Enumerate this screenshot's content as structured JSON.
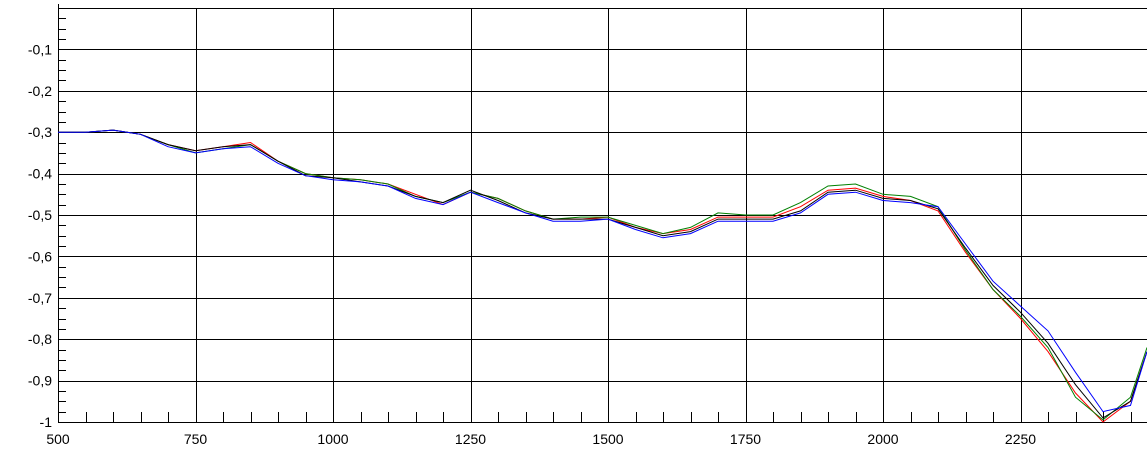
{
  "chart_data": {
    "type": "line",
    "title": "",
    "xlabel": "",
    "ylabel": "",
    "xlim": [
      500,
      2480
    ],
    "ylim": [
      -1.0,
      0.0
    ],
    "grid": true,
    "legend": "none",
    "x_ticks": [
      {
        "value": 500,
        "label": "500"
      },
      {
        "value": 750,
        "label": "750"
      },
      {
        "value": 1000,
        "label": "1000"
      },
      {
        "value": 1250,
        "label": "1250"
      },
      {
        "value": 1500,
        "label": "1500"
      },
      {
        "value": 1750,
        "label": "1750"
      },
      {
        "value": 2000,
        "label": "2000"
      },
      {
        "value": 2250,
        "label": "2250"
      }
    ],
    "y_ticks": [
      {
        "value": -0.1,
        "label": "-0,1"
      },
      {
        "value": -0.2,
        "label": "-0,2"
      },
      {
        "value": -0.3,
        "label": "-0,3"
      },
      {
        "value": -0.4,
        "label": "-0,4"
      },
      {
        "value": -0.5,
        "label": "-0,5"
      },
      {
        "value": -0.6,
        "label": "-0,6"
      },
      {
        "value": -0.7,
        "label": "-0,7"
      },
      {
        "value": -0.8,
        "label": "-0,8"
      },
      {
        "value": -0.9,
        "label": "-0,9"
      },
      {
        "value": -1.0,
        "label": "-1"
      }
    ],
    "x": [
      500,
      550,
      600,
      650,
      700,
      750,
      800,
      850,
      900,
      950,
      1000,
      1050,
      1100,
      1150,
      1200,
      1250,
      1300,
      1350,
      1400,
      1450,
      1500,
      1550,
      1600,
      1650,
      1700,
      1750,
      1800,
      1850,
      1900,
      1950,
      2000,
      2050,
      2100,
      2150,
      2200,
      2250,
      2300,
      2350,
      2400,
      2450,
      2480
    ],
    "series": [
      {
        "color": "#ff0000",
        "values": [
          -0.3,
          -0.3,
          -0.295,
          -0.305,
          -0.33,
          -0.345,
          -0.335,
          -0.325,
          -0.37,
          -0.4,
          -0.41,
          -0.415,
          -0.425,
          -0.45,
          -0.475,
          -0.445,
          -0.46,
          -0.49,
          -0.51,
          -0.51,
          -0.505,
          -0.53,
          -0.545,
          -0.535,
          -0.505,
          -0.505,
          -0.505,
          -0.48,
          -0.44,
          -0.435,
          -0.455,
          -0.465,
          -0.49,
          -0.59,
          -0.68,
          -0.75,
          -0.83,
          -0.93,
          -1.0,
          -0.95,
          -0.83
        ]
      },
      {
        "color": "#008000",
        "values": [
          -0.3,
          -0.3,
          -0.295,
          -0.305,
          -0.33,
          -0.35,
          -0.34,
          -0.33,
          -0.37,
          -0.4,
          -0.41,
          -0.415,
          -0.425,
          -0.455,
          -0.47,
          -0.445,
          -0.46,
          -0.49,
          -0.51,
          -0.505,
          -0.505,
          -0.525,
          -0.545,
          -0.53,
          -0.495,
          -0.5,
          -0.5,
          -0.47,
          -0.43,
          -0.425,
          -0.45,
          -0.455,
          -0.48,
          -0.585,
          -0.68,
          -0.745,
          -0.82,
          -0.94,
          -0.995,
          -0.94,
          -0.82
        ]
      },
      {
        "color": "#000000",
        "values": [
          -0.3,
          -0.3,
          -0.295,
          -0.305,
          -0.33,
          -0.345,
          -0.335,
          -0.33,
          -0.37,
          -0.405,
          -0.41,
          -0.42,
          -0.43,
          -0.455,
          -0.47,
          -0.44,
          -0.465,
          -0.495,
          -0.51,
          -0.51,
          -0.51,
          -0.53,
          -0.55,
          -0.54,
          -0.51,
          -0.51,
          -0.51,
          -0.49,
          -0.445,
          -0.44,
          -0.46,
          -0.465,
          -0.485,
          -0.58,
          -0.67,
          -0.735,
          -0.81,
          -0.91,
          -0.99,
          -0.95,
          -0.83
        ]
      },
      {
        "color": "#0000ff",
        "values": [
          -0.3,
          -0.3,
          -0.295,
          -0.305,
          -0.335,
          -0.35,
          -0.34,
          -0.335,
          -0.375,
          -0.405,
          -0.415,
          -0.42,
          -0.43,
          -0.46,
          -0.475,
          -0.445,
          -0.47,
          -0.495,
          -0.515,
          -0.515,
          -0.51,
          -0.535,
          -0.555,
          -0.545,
          -0.515,
          -0.515,
          -0.515,
          -0.495,
          -0.45,
          -0.445,
          -0.465,
          -0.47,
          -0.48,
          -0.57,
          -0.66,
          -0.72,
          -0.78,
          -0.88,
          -0.975,
          -0.96,
          -0.83
        ]
      }
    ]
  }
}
